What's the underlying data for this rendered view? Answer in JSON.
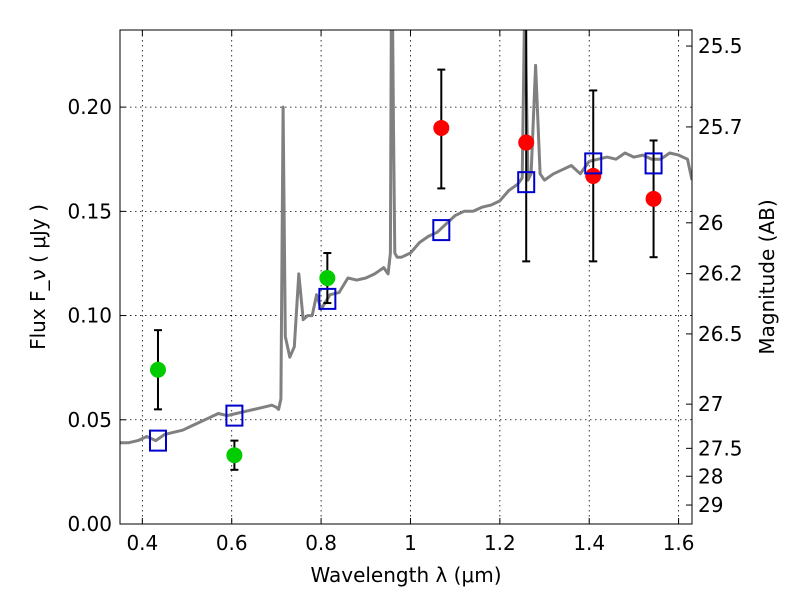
{
  "chart_data": {
    "type": "scatter",
    "xlabel": "Wavelength  λ (μm)",
    "ylabel": "Flux  F_ν  ( μJy )",
    "ylabel_right": "Magnitude (AB)",
    "xlim": [
      0.35,
      1.63
    ],
    "ylim": [
      0.0,
      0.237
    ],
    "grid": true,
    "x_ticks": [
      0.4,
      0.6,
      0.8,
      1.0,
      1.2,
      1.4,
      1.6
    ],
    "x_tick_labels": [
      "0.4",
      "0.6",
      "0.8",
      "1",
      "1.2",
      "1.4",
      "1.6"
    ],
    "y_ticks": [
      0.0,
      0.05,
      0.1,
      0.15,
      0.2
    ],
    "y_tick_labels": [
      "0.00",
      "0.05",
      "0.10",
      "0.15",
      "0.20"
    ],
    "right_ticks": [
      {
        "flux": 0.2293,
        "label": "25.5"
      },
      {
        "flux": 0.1905,
        "label": "25.7"
      },
      {
        "flux": 0.1445,
        "label": "26"
      },
      {
        "flux": 0.1201,
        "label": "26.2"
      },
      {
        "flux": 0.0912,
        "label": "26.5"
      },
      {
        "flux": 0.0575,
        "label": "27"
      },
      {
        "flux": 0.0363,
        "label": "27.5"
      },
      {
        "flux": 0.0229,
        "label": "28"
      },
      {
        "flux": 0.0091,
        "label": "29"
      }
    ],
    "spectrum_color": "#808080",
    "spectrum": {
      "x": [
        0.35,
        0.37,
        0.39,
        0.41,
        0.43,
        0.45,
        0.47,
        0.49,
        0.51,
        0.53,
        0.55,
        0.57,
        0.59,
        0.61,
        0.63,
        0.65,
        0.67,
        0.69,
        0.7,
        0.705,
        0.71,
        0.715,
        0.72,
        0.73,
        0.74,
        0.75,
        0.76,
        0.77,
        0.78,
        0.79,
        0.8,
        0.82,
        0.84,
        0.86,
        0.88,
        0.9,
        0.92,
        0.94,
        0.95,
        0.955,
        0.957,
        0.96,
        0.962,
        0.965,
        0.97,
        0.98,
        1.0,
        1.02,
        1.04,
        1.06,
        1.08,
        1.1,
        1.12,
        1.14,
        1.16,
        1.18,
        1.2,
        1.22,
        1.24,
        1.25,
        1.255,
        1.257,
        1.26,
        1.263,
        1.27,
        1.28,
        1.29,
        1.3,
        1.32,
        1.34,
        1.36,
        1.38,
        1.4,
        1.42,
        1.44,
        1.46,
        1.48,
        1.5,
        1.52,
        1.54,
        1.56,
        1.58,
        1.6,
        1.62,
        1.63
      ],
      "y": [
        0.039,
        0.039,
        0.04,
        0.042,
        0.04,
        0.043,
        0.044,
        0.045,
        0.047,
        0.049,
        0.051,
        0.053,
        0.052,
        0.053,
        0.054,
        0.055,
        0.056,
        0.057,
        0.056,
        0.055,
        0.06,
        0.2,
        0.09,
        0.08,
        0.085,
        0.12,
        0.098,
        0.1,
        0.1,
        0.11,
        0.103,
        0.11,
        0.111,
        0.118,
        0.117,
        0.118,
        0.12,
        0.123,
        0.12,
        0.13,
        0.24,
        0.24,
        0.19,
        0.13,
        0.128,
        0.128,
        0.13,
        0.135,
        0.138,
        0.14,
        0.144,
        0.148,
        0.15,
        0.15,
        0.152,
        0.153,
        0.155,
        0.16,
        0.163,
        0.166,
        0.24,
        0.24,
        0.2,
        0.165,
        0.168,
        0.22,
        0.168,
        0.165,
        0.168,
        0.17,
        0.172,
        0.168,
        0.174,
        0.175,
        0.176,
        0.175,
        0.178,
        0.176,
        0.177,
        0.175,
        0.175,
        0.178,
        0.177,
        0.175,
        0.165
      ]
    },
    "series": [
      {
        "marker": "circle",
        "color": "#00cc00",
        "points": [
          {
            "x": 0.435,
            "y": 0.074,
            "err_lo": 0.055,
            "err_hi": 0.093
          },
          {
            "x": 0.606,
            "y": 0.033,
            "err_lo": 0.026,
            "err_hi": 0.04
          },
          {
            "x": 0.814,
            "y": 0.118,
            "err_lo": 0.106,
            "err_hi": 0.13
          }
        ]
      },
      {
        "marker": "circle",
        "color": "#ff0000",
        "points": [
          {
            "x": 1.069,
            "y": 0.19,
            "err_lo": 0.161,
            "err_hi": 0.218
          },
          {
            "x": 1.259,
            "y": 0.183,
            "err_lo": 0.126,
            "err_hi": 0.24
          },
          {
            "x": 1.409,
            "y": 0.167,
            "err_lo": 0.126,
            "err_hi": 0.208
          },
          {
            "x": 1.544,
            "y": 0.156,
            "err_lo": 0.128,
            "err_hi": 0.184
          }
        ]
      },
      {
        "marker": "square",
        "color": "#0000cc",
        "points": [
          {
            "x": 0.435,
            "y": 0.04
          },
          {
            "x": 0.606,
            "y": 0.052
          },
          {
            "x": 0.814,
            "y": 0.108
          },
          {
            "x": 1.069,
            "y": 0.141
          },
          {
            "x": 1.259,
            "y": 0.164
          },
          {
            "x": 1.409,
            "y": 0.173
          },
          {
            "x": 1.544,
            "y": 0.173
          }
        ]
      }
    ]
  }
}
